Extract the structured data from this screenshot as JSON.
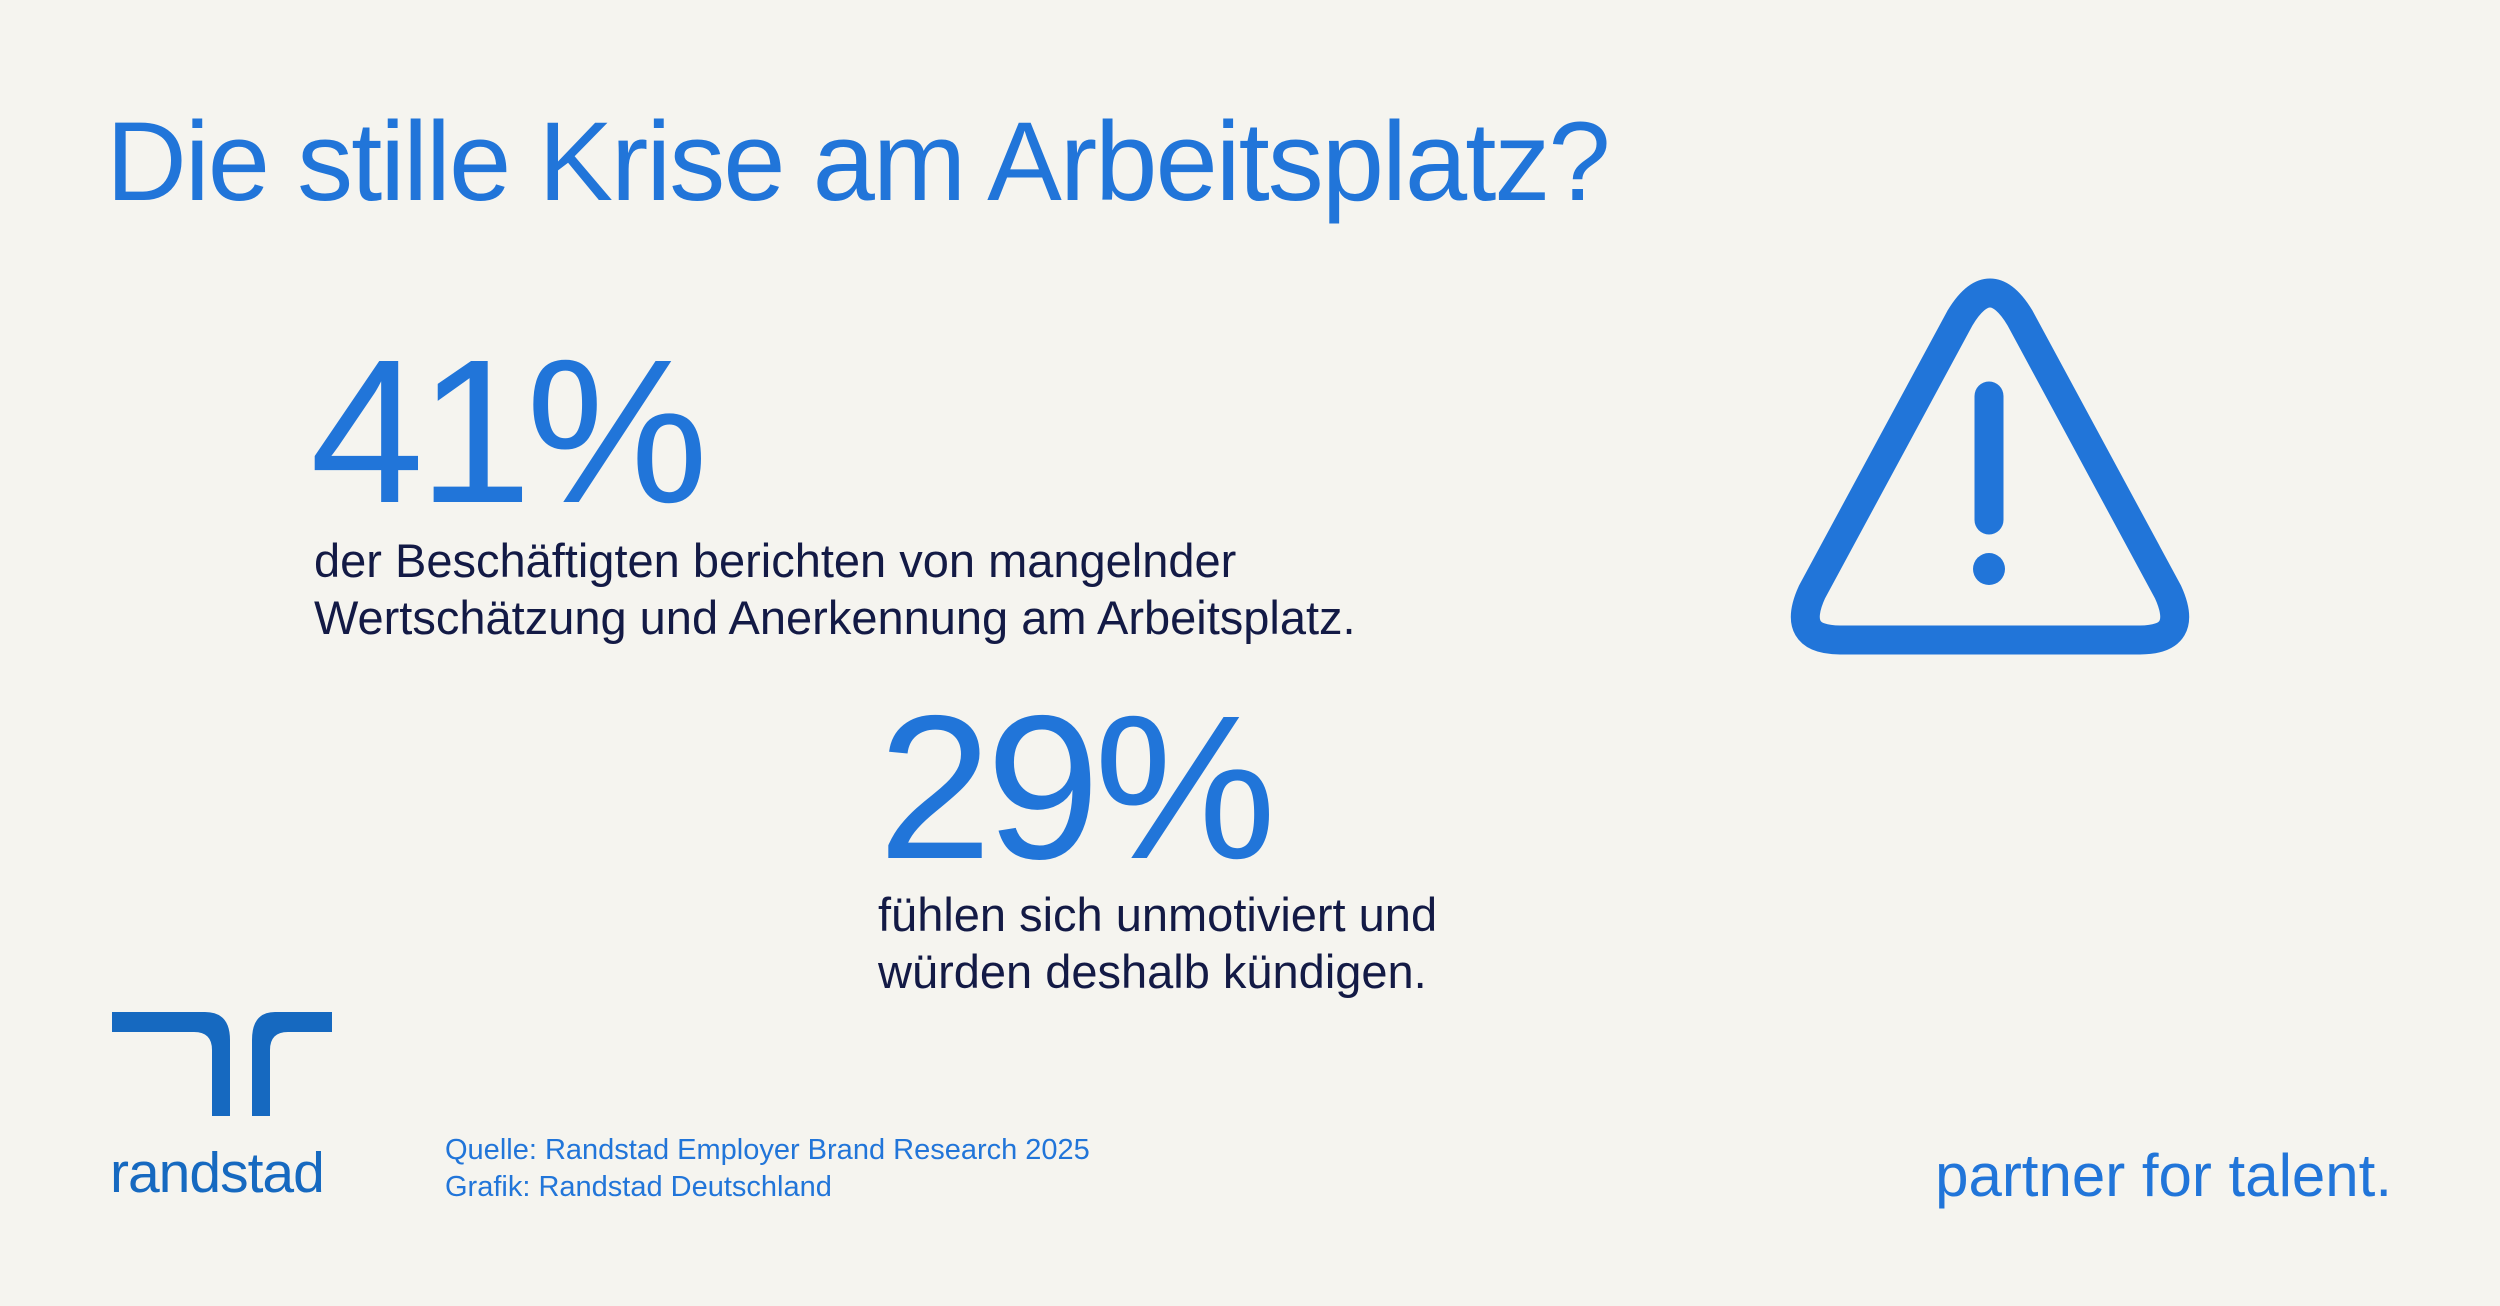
{
  "header": {
    "title": "Die stille Krise am Arbeitsplatz?"
  },
  "stats": [
    {
      "value": "41%",
      "lines": [
        "der Beschäftigten berichten von mangelnder",
        "Wertschätzung und Anerkennung am Arbeitsplatz."
      ]
    },
    {
      "value": "29%",
      "lines": [
        "fühlen sich unmotiviert und",
        "würden deshalb kündigen."
      ]
    }
  ],
  "footer": {
    "logo": "randstad",
    "source": [
      "Quelle: Randstad Employer Brand Research 2025",
      "Grafik: Randstad Deutschland"
    ],
    "tagline": "partner for talent."
  }
}
